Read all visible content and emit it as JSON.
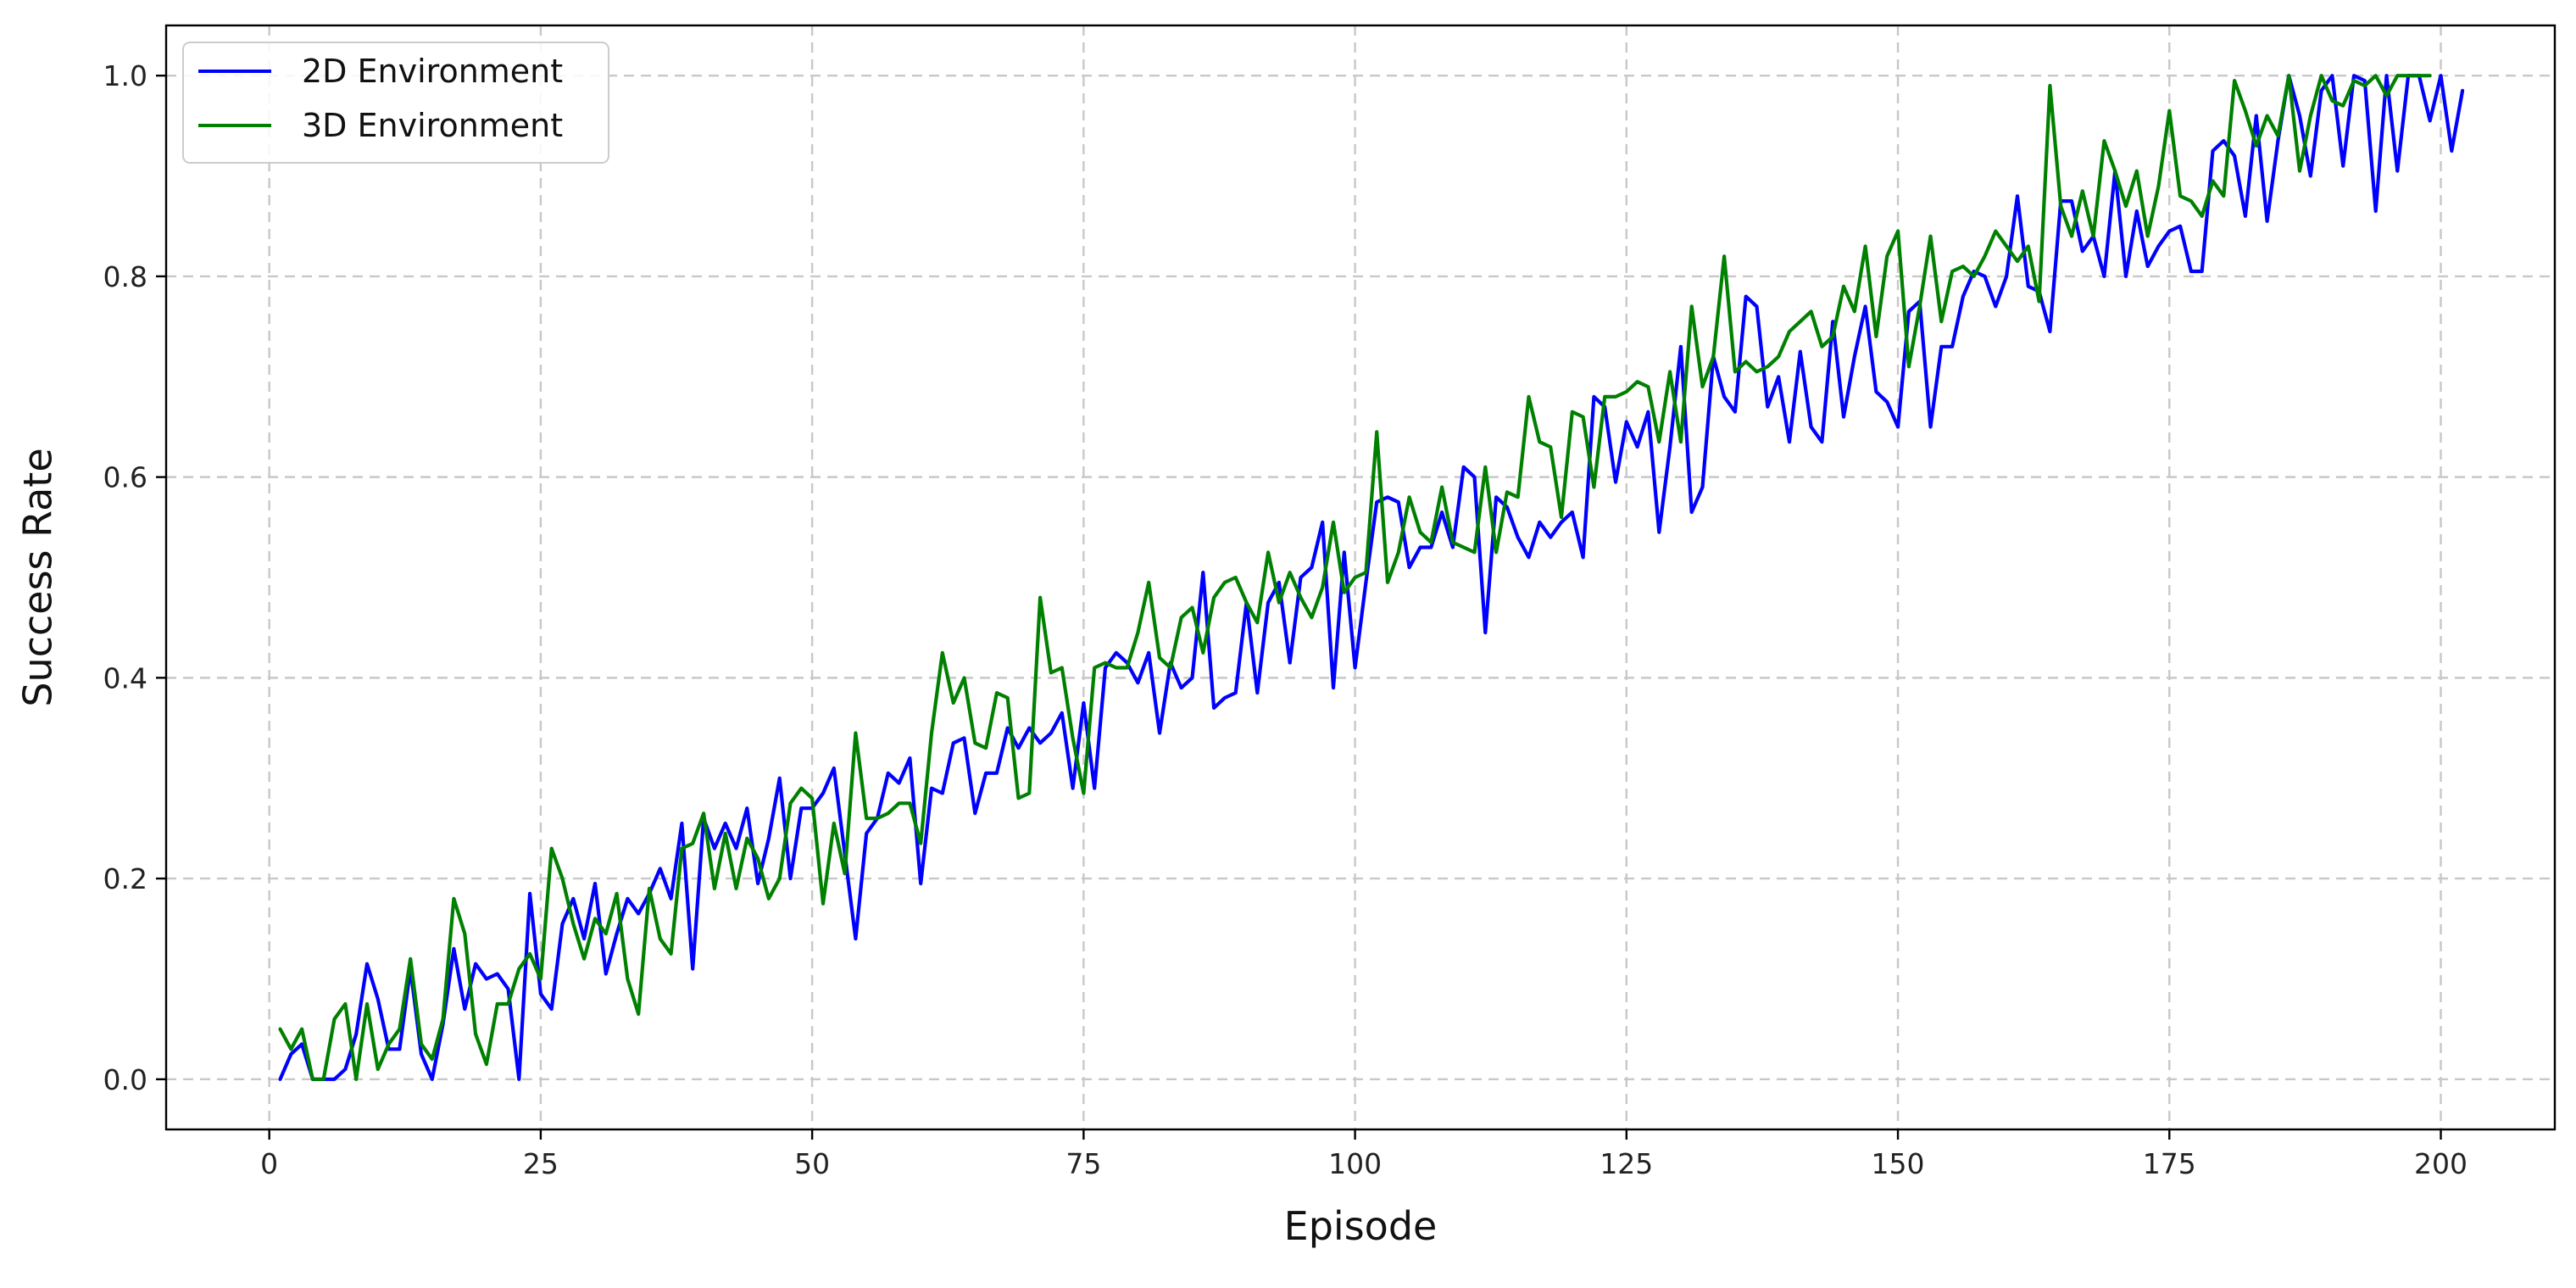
{
  "chart_data": {
    "type": "line",
    "xlabel": "Episode",
    "ylabel": "Success Rate",
    "xlim": [
      -9.5,
      210.5
    ],
    "ylim": [
      -0.05,
      1.05
    ],
    "xticks": [
      0,
      25,
      50,
      75,
      100,
      125,
      150,
      175,
      200
    ],
    "yticks": [
      0.0,
      0.2,
      0.4,
      0.6,
      0.8,
      1.0
    ],
    "xtick_labels": [
      "0",
      "25",
      "50",
      "75",
      "100",
      "125",
      "150",
      "175",
      "200"
    ],
    "ytick_labels": [
      "0.0",
      "0.2",
      "0.4",
      "0.6",
      "0.8",
      "1.0"
    ],
    "grid": true,
    "legend_position": "top-left",
    "series": [
      {
        "name": "2D Environment",
        "color": "#0000ff",
        "x_start": 1,
        "values": [
          0.0,
          0.025,
          0.035,
          0.0,
          0.0,
          0.0,
          0.01,
          0.045,
          0.115,
          0.08,
          0.03,
          0.03,
          0.11,
          0.025,
          0.0,
          0.055,
          0.13,
          0.07,
          0.115,
          0.1,
          0.105,
          0.09,
          0.0,
          0.185,
          0.085,
          0.07,
          0.155,
          0.18,
          0.14,
          0.195,
          0.105,
          0.145,
          0.18,
          0.165,
          0.185,
          0.21,
          0.18,
          0.255,
          0.11,
          0.26,
          0.23,
          0.255,
          0.23,
          0.27,
          0.195,
          0.24,
          0.3,
          0.2,
          0.27,
          0.27,
          0.285,
          0.31,
          0.225,
          0.14,
          0.245,
          0.26,
          0.305,
          0.295,
          0.32,
          0.195,
          0.29,
          0.285,
          0.335,
          0.34,
          0.265,
          0.305,
          0.305,
          0.35,
          0.33,
          0.35,
          0.335,
          0.345,
          0.365,
          0.29,
          0.375,
          0.29,
          0.41,
          0.425,
          0.415,
          0.395,
          0.425,
          0.345,
          0.415,
          0.39,
          0.4,
          0.505,
          0.37,
          0.38,
          0.385,
          0.475,
          0.385,
          0.475,
          0.495,
          0.415,
          0.5,
          0.51,
          0.555,
          0.39,
          0.525,
          0.41,
          0.495,
          0.575,
          0.58,
          0.575,
          0.51,
          0.53,
          0.53,
          0.565,
          0.53,
          0.61,
          0.6,
          0.445,
          0.58,
          0.57,
          0.54,
          0.52,
          0.555,
          0.54,
          0.555,
          0.565,
          0.52,
          0.68,
          0.67,
          0.595,
          0.655,
          0.63,
          0.665,
          0.545,
          0.63,
          0.73,
          0.565,
          0.59,
          0.72,
          0.68,
          0.665,
          0.78,
          0.77,
          0.67,
          0.7,
          0.635,
          0.725,
          0.65,
          0.635,
          0.755,
          0.66,
          0.72,
          0.77,
          0.685,
          0.675,
          0.65,
          0.765,
          0.775,
          0.65,
          0.73,
          0.73,
          0.78,
          0.805,
          0.8,
          0.77,
          0.8,
          0.88,
          0.79,
          0.785,
          0.745,
          0.875,
          0.875,
          0.825,
          0.84,
          0.8,
          0.905,
          0.8,
          0.865,
          0.81,
          0.83,
          0.845,
          0.85,
          0.805,
          0.805,
          0.925,
          0.935,
          0.92,
          0.86,
          0.96,
          0.855,
          0.935,
          1.0,
          0.96,
          0.9,
          0.985,
          1.0,
          0.91,
          1.0,
          0.995,
          0.865,
          1.0,
          0.905,
          1.0,
          1.0,
          0.955,
          1.0,
          0.925,
          0.985
        ]
      },
      {
        "name": "3D Environment",
        "color": "#008000",
        "x_start": 1,
        "values": [
          0.05,
          0.03,
          0.05,
          0.0,
          0.0,
          0.06,
          0.075,
          0.0,
          0.075,
          0.01,
          0.035,
          0.05,
          0.12,
          0.035,
          0.02,
          0.06,
          0.18,
          0.145,
          0.045,
          0.015,
          0.075,
          0.075,
          0.11,
          0.125,
          0.1,
          0.23,
          0.2,
          0.155,
          0.12,
          0.16,
          0.145,
          0.185,
          0.1,
          0.065,
          0.19,
          0.14,
          0.125,
          0.23,
          0.235,
          0.265,
          0.19,
          0.245,
          0.19,
          0.24,
          0.22,
          0.18,
          0.2,
          0.275,
          0.29,
          0.28,
          0.175,
          0.255,
          0.205,
          0.345,
          0.26,
          0.26,
          0.265,
          0.275,
          0.275,
          0.235,
          0.345,
          0.425,
          0.375,
          0.4,
          0.335,
          0.33,
          0.385,
          0.38,
          0.28,
          0.285,
          0.48,
          0.405,
          0.41,
          0.34,
          0.285,
          0.41,
          0.415,
          0.41,
          0.41,
          0.445,
          0.495,
          0.42,
          0.41,
          0.46,
          0.47,
          0.425,
          0.48,
          0.495,
          0.5,
          0.475,
          0.455,
          0.525,
          0.475,
          0.505,
          0.48,
          0.46,
          0.49,
          0.555,
          0.485,
          0.5,
          0.505,
          0.645,
          0.495,
          0.525,
          0.58,
          0.545,
          0.535,
          0.59,
          0.535,
          0.53,
          0.525,
          0.61,
          0.525,
          0.585,
          0.58,
          0.68,
          0.635,
          0.63,
          0.56,
          0.665,
          0.66,
          0.59,
          0.68,
          0.68,
          0.685,
          0.695,
          0.69,
          0.635,
          0.705,
          0.635,
          0.77,
          0.69,
          0.72,
          0.82,
          0.705,
          0.715,
          0.705,
          0.71,
          0.72,
          0.745,
          0.755,
          0.765,
          0.73,
          0.74,
          0.79,
          0.765,
          0.83,
          0.74,
          0.82,
          0.845,
          0.71,
          0.77,
          0.84,
          0.755,
          0.805,
          0.81,
          0.8,
          0.82,
          0.845,
          0.83,
          0.815,
          0.83,
          0.775,
          0.99,
          0.87,
          0.84,
          0.885,
          0.84,
          0.935,
          0.905,
          0.87,
          0.905,
          0.84,
          0.89,
          0.965,
          0.88,
          0.875,
          0.86,
          0.895,
          0.88,
          0.995,
          0.965,
          0.93,
          0.96,
          0.94,
          1.0,
          0.905,
          0.96,
          1.0,
          0.975,
          0.97,
          0.995,
          0.99,
          1.0,
          0.98,
          1.0,
          1.0,
          1.0,
          1.0
        ]
      }
    ]
  }
}
